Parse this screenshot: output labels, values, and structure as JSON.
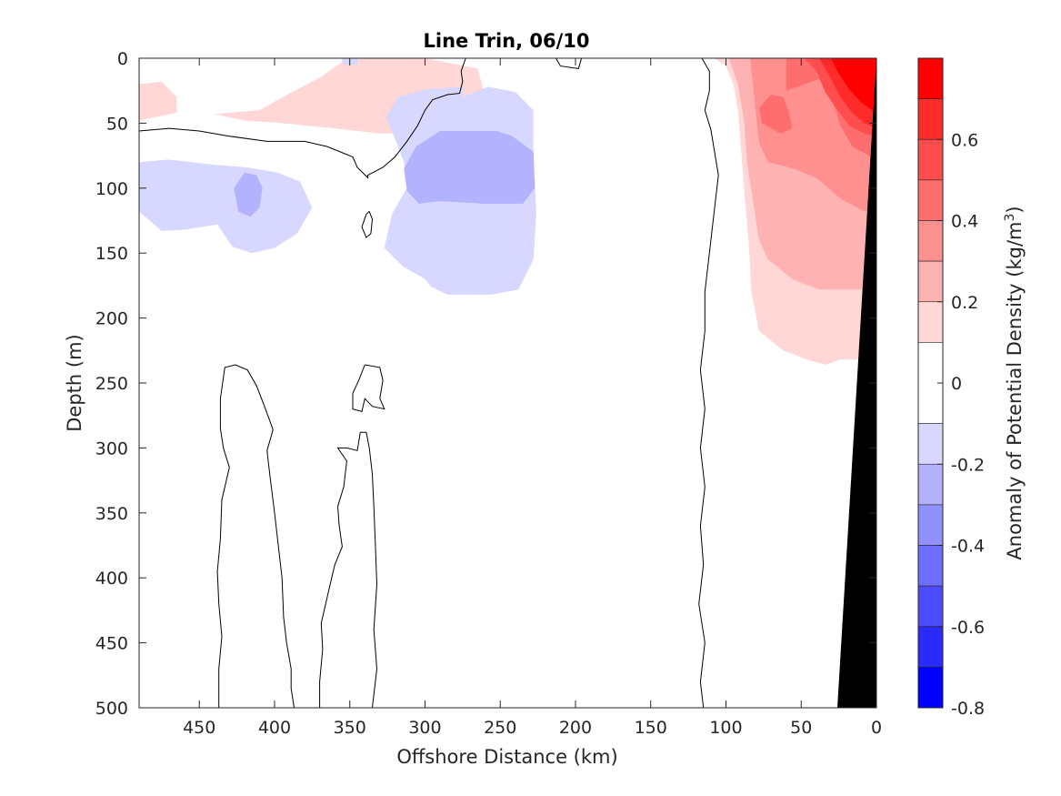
{
  "chart_data": {
    "type": "contour",
    "title": "Line Trin, 06/10",
    "xlabel": "Offshore Distance (km)",
    "ylabel": "Depth (m)",
    "xlim": [
      490,
      0
    ],
    "ylim": [
      0,
      500
    ],
    "x_reversed": true,
    "y_reversed": true,
    "x_ticks": [
      450,
      400,
      350,
      300,
      250,
      200,
      150,
      100,
      50,
      0
    ],
    "y_ticks": [
      0,
      50,
      100,
      150,
      200,
      250,
      300,
      350,
      400,
      450,
      500
    ],
    "colorbar": {
      "label": "Anomaly of Potential Density (kg/m",
      "label_superscript": "3",
      "label_close": ")",
      "range": [
        -0.8,
        0.8
      ],
      "ticks": [
        0.6,
        0.4,
        0.2,
        0,
        -0.2,
        -0.4,
        -0.6,
        -0.8
      ],
      "levels": [
        {
          "min": 0.7,
          "max": 0.8,
          "color": "#ff0000"
        },
        {
          "min": 0.6,
          "max": 0.7,
          "color": "#ff2a2a"
        },
        {
          "min": 0.5,
          "max": 0.6,
          "color": "#ff4c4c"
        },
        {
          "min": 0.4,
          "max": 0.5,
          "color": "#ff6e6e"
        },
        {
          "min": 0.3,
          "max": 0.4,
          "color": "#ff9090"
        },
        {
          "min": 0.2,
          "max": 0.3,
          "color": "#ffb2b2"
        },
        {
          "min": 0.1,
          "max": 0.2,
          "color": "#ffd7d7"
        },
        {
          "min": -0.1,
          "max": 0.1,
          "color": "#ffffff"
        },
        {
          "min": -0.2,
          "max": -0.1,
          "color": "#d7d7ff"
        },
        {
          "min": -0.3,
          "max": -0.2,
          "color": "#b2b2ff"
        },
        {
          "min": -0.4,
          "max": -0.3,
          "color": "#9090ff"
        },
        {
          "min": -0.5,
          "max": -0.4,
          "color": "#6e6eff"
        },
        {
          "min": -0.6,
          "max": -0.5,
          "color": "#4c4cff"
        },
        {
          "min": -0.7,
          "max": -0.6,
          "color": "#2a2aff"
        },
        {
          "min": -0.8,
          "max": -0.7,
          "color": "#0000ff"
        }
      ]
    },
    "filled_regions": [
      {
        "level": 0.15,
        "color": "#ffd7d7",
        "points": [
          [
            490,
            20
          ],
          [
            475,
            18
          ],
          [
            465,
            30
          ],
          [
            465,
            42
          ],
          [
            490,
            48
          ]
        ]
      },
      {
        "level": 0.15,
        "color": "#ffd7d7",
        "points": [
          [
            440,
            43
          ],
          [
            410,
            40
          ],
          [
            390,
            27
          ],
          [
            370,
            15
          ],
          [
            355,
            3
          ],
          [
            342,
            0
          ],
          [
            300,
            0
          ],
          [
            265,
            8
          ],
          [
            260,
            30
          ],
          [
            266,
            50
          ],
          [
            290,
            57
          ],
          [
            330,
            58
          ],
          [
            360,
            54
          ],
          [
            395,
            50
          ],
          [
            420,
            48
          ]
        ]
      },
      {
        "level": -0.15,
        "color": "#d7d7ff",
        "points": [
          [
            490,
            80
          ],
          [
            470,
            78
          ],
          [
            440,
            82
          ],
          [
            418,
            84
          ],
          [
            398,
            88
          ],
          [
            383,
            95
          ],
          [
            375,
            115
          ],
          [
            385,
            135
          ],
          [
            400,
            146
          ],
          [
            415,
            150
          ],
          [
            428,
            145
          ],
          [
            438,
            128
          ],
          [
            460,
            132
          ],
          [
            475,
            133
          ],
          [
            482,
            126
          ],
          [
            490,
            118
          ]
        ]
      },
      {
        "level": -0.25,
        "color": "#b2b2ff",
        "points": [
          [
            420,
            88
          ],
          [
            412,
            90
          ],
          [
            408,
            100
          ],
          [
            410,
            115
          ],
          [
            416,
            122
          ],
          [
            424,
            118
          ],
          [
            427,
            100
          ]
        ]
      },
      {
        "level": -0.15,
        "color": "#d7d7ff",
        "points": [
          [
            275,
            30
          ],
          [
            258,
            22
          ],
          [
            240,
            26
          ],
          [
            228,
            40
          ],
          [
            228,
            70
          ],
          [
            226,
            120
          ],
          [
            228,
            155
          ],
          [
            238,
            178
          ],
          [
            256,
            182
          ],
          [
            285,
            182
          ],
          [
            296,
            176
          ],
          [
            300,
            170
          ],
          [
            315,
            160
          ],
          [
            327,
            146
          ],
          [
            322,
            120
          ],
          [
            312,
            100
          ],
          [
            314,
            80
          ],
          [
            320,
            62
          ],
          [
            326,
            45
          ],
          [
            318,
            30
          ],
          [
            300,
            24
          ],
          [
            275,
            22
          ]
        ]
      },
      {
        "level": -0.25,
        "color": "#b2b2ff",
        "points": [
          [
            242,
            60
          ],
          [
            228,
            72
          ],
          [
            227,
            100
          ],
          [
            235,
            112
          ],
          [
            262,
            112
          ],
          [
            290,
            110
          ],
          [
            304,
            112
          ],
          [
            312,
            102
          ],
          [
            314,
            85
          ],
          [
            306,
            68
          ],
          [
            290,
            56
          ],
          [
            270,
            56
          ],
          [
            252,
            56
          ]
        ]
      },
      {
        "level": -0.15,
        "color": "#d7d7ff",
        "points": [
          [
            355,
            0
          ],
          [
            345,
            0
          ],
          [
            345,
            5
          ],
          [
            355,
            5
          ]
        ]
      },
      {
        "level": 0.15,
        "color": "#ffd7d7",
        "points": [
          [
            62,
            5
          ],
          [
            80,
            2
          ],
          [
            84,
            0
          ],
          [
            42,
            0
          ],
          [
            40,
            6
          ],
          [
            44,
            8
          ],
          [
            50,
            8
          ]
        ]
      },
      {
        "level": 0.15,
        "color": "#ffd7d7",
        "points": [
          [
            108,
            0
          ],
          [
            100,
            6
          ],
          [
            95,
            20
          ],
          [
            92,
            40
          ],
          [
            90,
            70
          ],
          [
            88,
            100
          ],
          [
            85,
            140
          ],
          [
            83,
            180
          ],
          [
            78,
            210
          ],
          [
            62,
            225
          ],
          [
            46,
            232
          ],
          [
            34,
            236
          ],
          [
            24,
            232
          ],
          [
            0,
            232
          ],
          [
            0,
            0
          ]
        ]
      },
      {
        "level": 0.25,
        "color": "#ffb2b2",
        "points": [
          [
            98,
            0
          ],
          [
            92,
            20
          ],
          [
            88,
            48
          ],
          [
            86,
            80
          ],
          [
            82,
            110
          ],
          [
            78,
            140
          ],
          [
            72,
            155
          ],
          [
            56,
            170
          ],
          [
            38,
            178
          ],
          [
            22,
            178
          ],
          [
            0,
            178
          ],
          [
            0,
            0
          ]
        ]
      },
      {
        "level": 0.35,
        "color": "#ff9090",
        "points": [
          [
            84,
            0
          ],
          [
            82,
            20
          ],
          [
            80,
            45
          ],
          [
            78,
            65
          ],
          [
            72,
            80
          ],
          [
            55,
            85
          ],
          [
            40,
            92
          ],
          [
            24,
            108
          ],
          [
            8,
            118
          ],
          [
            0,
            118
          ],
          [
            0,
            0
          ]
        ]
      },
      {
        "level": 0.45,
        "color": "#ff6e6e",
        "points": [
          [
            60,
            25
          ],
          [
            60,
            0
          ],
          [
            42,
            0
          ],
          [
            40,
            12
          ],
          [
            30,
            28
          ],
          [
            24,
            52
          ],
          [
            16,
            68
          ],
          [
            0,
            78
          ],
          [
            0,
            0
          ]
        ]
      },
      {
        "level": 0.45,
        "color": "#ff6e6e",
        "points": [
          [
            78,
            38
          ],
          [
            70,
            28
          ],
          [
            62,
            30
          ],
          [
            58,
            42
          ],
          [
            56,
            54
          ],
          [
            64,
            58
          ],
          [
            76,
            50
          ]
        ]
      },
      {
        "level": 0.55,
        "color": "#ff4c4c",
        "points": [
          [
            48,
            0
          ],
          [
            40,
            10
          ],
          [
            34,
            26
          ],
          [
            26,
            40
          ],
          [
            18,
            52
          ],
          [
            8,
            58
          ],
          [
            0,
            60
          ],
          [
            0,
            0
          ]
        ]
      },
      {
        "level": 0.65,
        "color": "#ff2a2a",
        "points": [
          [
            38,
            0
          ],
          [
            32,
            12
          ],
          [
            24,
            30
          ],
          [
            16,
            42
          ],
          [
            8,
            50
          ],
          [
            0,
            54
          ],
          [
            0,
            0
          ]
        ]
      },
      {
        "level": 0.75,
        "color": "#ff0000",
        "points": [
          [
            30,
            0
          ],
          [
            26,
            10
          ],
          [
            18,
            24
          ],
          [
            10,
            34
          ],
          [
            0,
            42
          ],
          [
            0,
            0
          ]
        ]
      }
    ],
    "seafloor": {
      "color": "#000000",
      "points": [
        [
          0,
          0
        ],
        [
          0,
          500
        ],
        [
          26,
          500
        ]
      ]
    },
    "zero_contours": [
      [
        [
          490,
          56
        ],
        [
          470,
          54
        ],
        [
          450,
          56
        ],
        [
          430,
          60
        ],
        [
          405,
          64
        ],
        [
          380,
          64
        ],
        [
          365,
          68
        ],
        [
          348,
          76
        ],
        [
          345,
          84
        ],
        [
          338,
          92
        ],
        [
          338,
          90
        ],
        [
          328,
          84
        ],
        [
          320,
          76
        ],
        [
          312,
          64
        ],
        [
          305,
          52
        ],
        [
          300,
          40
        ],
        [
          295,
          32
        ],
        [
          285,
          28
        ],
        [
          277,
          27
        ],
        [
          275,
          18
        ],
        [
          276,
          10
        ],
        [
          273,
          0
        ]
      ],
      [
        [
          213,
          0
        ],
        [
          210,
          6
        ],
        [
          198,
          8
        ],
        [
          196,
          0
        ]
      ],
      [
        [
          339,
          120
        ],
        [
          342,
          130
        ],
        [
          339,
          138
        ],
        [
          336,
          135
        ],
        [
          335,
          124
        ],
        [
          337,
          118
        ],
        [
          339,
          120
        ]
      ],
      [
        [
          116,
          0
        ],
        [
          111,
          10
        ],
        [
          111,
          25
        ],
        [
          114,
          40
        ],
        [
          110,
          55
        ],
        [
          105,
          90
        ],
        [
          108,
          120
        ],
        [
          111,
          150
        ],
        [
          114,
          180
        ],
        [
          114,
          210
        ],
        [
          117,
          240
        ],
        [
          114,
          270
        ],
        [
          117,
          300
        ],
        [
          114,
          330
        ],
        [
          117,
          360
        ],
        [
          115,
          390
        ],
        [
          118,
          420
        ],
        [
          114,
          450
        ],
        [
          117,
          480
        ],
        [
          115,
          500
        ]
      ],
      [
        [
          437,
          500
        ],
        [
          437,
          470
        ],
        [
          435,
          445
        ],
        [
          437,
          420
        ],
        [
          438,
          395
        ],
        [
          436,
          370
        ],
        [
          435,
          340
        ],
        [
          430,
          315
        ],
        [
          434,
          300
        ],
        [
          436,
          285
        ],
        [
          436,
          262
        ],
        [
          433,
          238
        ],
        [
          426,
          236
        ],
        [
          418,
          240
        ],
        [
          412,
          252
        ],
        [
          406,
          270
        ],
        [
          401,
          286
        ],
        [
          405,
          302
        ],
        [
          403,
          322
        ],
        [
          400,
          350
        ],
        [
          397,
          380
        ],
        [
          395,
          400
        ],
        [
          394,
          430
        ],
        [
          392,
          450
        ],
        [
          389,
          470
        ],
        [
          389,
          485
        ],
        [
          387,
          500
        ]
      ],
      [
        [
          370,
          500
        ],
        [
          370,
          480
        ],
        [
          368,
          455
        ],
        [
          369,
          435
        ],
        [
          364,
          410
        ],
        [
          360,
          390
        ],
        [
          355,
          376
        ],
        [
          357,
          360
        ],
        [
          358,
          345
        ],
        [
          354,
          330
        ],
        [
          352,
          310
        ],
        [
          358,
          300
        ],
        [
          352,
          300
        ],
        [
          345,
          302
        ],
        [
          343,
          288
        ],
        [
          339,
          288
        ],
        [
          337,
          300
        ],
        [
          335,
          320
        ],
        [
          334,
          345
        ],
        [
          333,
          375
        ],
        [
          332,
          405
        ],
        [
          334,
          440
        ],
        [
          332,
          470
        ],
        [
          335,
          500
        ]
      ],
      [
        [
          340,
          236
        ],
        [
          330,
          238
        ],
        [
          328,
          248
        ],
        [
          330,
          262
        ],
        [
          327,
          270
        ],
        [
          335,
          268
        ],
        [
          340,
          262
        ],
        [
          342,
          272
        ],
        [
          348,
          270
        ],
        [
          348,
          258
        ],
        [
          344,
          248
        ],
        [
          340,
          236
        ]
      ]
    ]
  }
}
